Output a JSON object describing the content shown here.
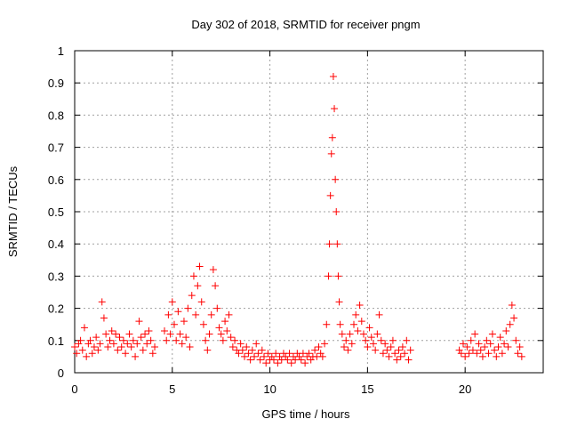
{
  "chart_data": {
    "type": "scatter",
    "title": "Day 302 of 2018, SRMTID for receiver pngm",
    "xlabel": "GPS time / hours",
    "ylabel": "SRMTID / TECUs",
    "xlim": [
      0,
      24
    ],
    "ylim": [
      0,
      1
    ],
    "grid": true,
    "marker": "+",
    "color": "#ff0000",
    "x_ticks": [
      0,
      5,
      10,
      15,
      20
    ],
    "x_tick_labels": [
      "0",
      "5",
      "10",
      "15",
      "20"
    ],
    "y_ticks": [
      0,
      0.1,
      0.2,
      0.3,
      0.4,
      0.5,
      0.6,
      0.7,
      0.8,
      0.9,
      1
    ],
    "y_tick_labels": [
      "0",
      "0.1",
      "0.2",
      "0.3",
      "0.4",
      "0.5",
      "0.6",
      "0.7",
      "0.8",
      "0.9",
      "1"
    ],
    "series": [
      {
        "name": "SRMTID",
        "points": [
          [
            0.0,
            0.08
          ],
          [
            0.1,
            0.06
          ],
          [
            0.2,
            0.09
          ],
          [
            0.3,
            0.1
          ],
          [
            0.4,
            0.07
          ],
          [
            0.5,
            0.14
          ],
          [
            0.6,
            0.05
          ],
          [
            0.7,
            0.09
          ],
          [
            0.8,
            0.1
          ],
          [
            0.9,
            0.06
          ],
          [
            1.0,
            0.08
          ],
          [
            1.1,
            0.11
          ],
          [
            1.2,
            0.07
          ],
          [
            1.3,
            0.09
          ],
          [
            1.4,
            0.22
          ],
          [
            1.5,
            0.17
          ],
          [
            1.6,
            0.12
          ],
          [
            1.7,
            0.08
          ],
          [
            1.8,
            0.1
          ],
          [
            1.9,
            0.13
          ],
          [
            2.0,
            0.09
          ],
          [
            2.1,
            0.12
          ],
          [
            2.2,
            0.07
          ],
          [
            2.3,
            0.11
          ],
          [
            2.4,
            0.08
          ],
          [
            2.5,
            0.1
          ],
          [
            2.6,
            0.06
          ],
          [
            2.7,
            0.09
          ],
          [
            2.8,
            0.12
          ],
          [
            2.9,
            0.08
          ],
          [
            3.0,
            0.1
          ],
          [
            3.1,
            0.05
          ],
          [
            3.2,
            0.09
          ],
          [
            3.3,
            0.16
          ],
          [
            3.4,
            0.11
          ],
          [
            3.5,
            0.07
          ],
          [
            3.6,
            0.12
          ],
          [
            3.7,
            0.09
          ],
          [
            3.8,
            0.13
          ],
          [
            3.9,
            0.1
          ],
          [
            4.0,
            0.06
          ],
          [
            4.1,
            0.08
          ],
          [
            4.6,
            0.13
          ],
          [
            4.7,
            0.1
          ],
          [
            4.8,
            0.18
          ],
          [
            4.9,
            0.12
          ],
          [
            5.0,
            0.22
          ],
          [
            5.1,
            0.15
          ],
          [
            5.2,
            0.1
          ],
          [
            5.3,
            0.19
          ],
          [
            5.4,
            0.12
          ],
          [
            5.5,
            0.09
          ],
          [
            5.6,
            0.16
          ],
          [
            5.7,
            0.11
          ],
          [
            5.8,
            0.2
          ],
          [
            5.9,
            0.08
          ],
          [
            6.0,
            0.24
          ],
          [
            6.1,
            0.3
          ],
          [
            6.2,
            0.18
          ],
          [
            6.3,
            0.27
          ],
          [
            6.4,
            0.33
          ],
          [
            6.5,
            0.22
          ],
          [
            6.6,
            0.15
          ],
          [
            6.7,
            0.1
          ],
          [
            6.8,
            0.07
          ],
          [
            6.9,
            0.12
          ],
          [
            7.0,
            0.18
          ],
          [
            7.1,
            0.32
          ],
          [
            7.2,
            0.27
          ],
          [
            7.3,
            0.2
          ],
          [
            7.4,
            0.14
          ],
          [
            7.5,
            0.12
          ],
          [
            7.6,
            0.1
          ],
          [
            7.7,
            0.16
          ],
          [
            7.8,
            0.13
          ],
          [
            7.9,
            0.18
          ],
          [
            8.0,
            0.11
          ],
          [
            8.1,
            0.08
          ],
          [
            8.2,
            0.1
          ],
          [
            8.3,
            0.07
          ],
          [
            8.4,
            0.06
          ],
          [
            8.5,
            0.09
          ],
          [
            8.6,
            0.07
          ],
          [
            8.7,
            0.05
          ],
          [
            8.8,
            0.08
          ],
          [
            8.9,
            0.06
          ],
          [
            9.0,
            0.04
          ],
          [
            9.1,
            0.07
          ],
          [
            9.2,
            0.05
          ],
          [
            9.3,
            0.09
          ],
          [
            9.4,
            0.06
          ],
          [
            9.5,
            0.04
          ],
          [
            9.6,
            0.07
          ],
          [
            9.7,
            0.05
          ],
          [
            9.8,
            0.03
          ],
          [
            9.9,
            0.06
          ],
          [
            10.0,
            0.04
          ],
          [
            10.1,
            0.05
          ],
          [
            10.2,
            0.04
          ],
          [
            10.3,
            0.06
          ],
          [
            10.4,
            0.03
          ],
          [
            10.5,
            0.05
          ],
          [
            10.6,
            0.04
          ],
          [
            10.7,
            0.06
          ],
          [
            10.8,
            0.05
          ],
          [
            10.9,
            0.04
          ],
          [
            11.0,
            0.06
          ],
          [
            11.1,
            0.03
          ],
          [
            11.2,
            0.05
          ],
          [
            11.3,
            0.04
          ],
          [
            11.4,
            0.06
          ],
          [
            11.5,
            0.05
          ],
          [
            11.6,
            0.04
          ],
          [
            11.7,
            0.06
          ],
          [
            11.8,
            0.03
          ],
          [
            11.9,
            0.05
          ],
          [
            12.0,
            0.06
          ],
          [
            12.1,
            0.04
          ],
          [
            12.2,
            0.05
          ],
          [
            12.3,
            0.07
          ],
          [
            12.4,
            0.05
          ],
          [
            12.5,
            0.08
          ],
          [
            12.6,
            0.06
          ],
          [
            12.7,
            0.05
          ],
          [
            12.8,
            0.09
          ],
          [
            12.9,
            0.15
          ],
          [
            13.0,
            0.3
          ],
          [
            13.05,
            0.4
          ],
          [
            13.1,
            0.55
          ],
          [
            13.15,
            0.68
          ],
          [
            13.2,
            0.73
          ],
          [
            13.25,
            0.92
          ],
          [
            13.3,
            0.82
          ],
          [
            13.35,
            0.6
          ],
          [
            13.4,
            0.5
          ],
          [
            13.45,
            0.4
          ],
          [
            13.5,
            0.3
          ],
          [
            13.55,
            0.22
          ],
          [
            13.6,
            0.15
          ],
          [
            13.7,
            0.12
          ],
          [
            13.8,
            0.08
          ],
          [
            13.9,
            0.1
          ],
          [
            14.0,
            0.07
          ],
          [
            14.1,
            0.12
          ],
          [
            14.2,
            0.09
          ],
          [
            14.3,
            0.15
          ],
          [
            14.4,
            0.18
          ],
          [
            14.5,
            0.13
          ],
          [
            14.6,
            0.21
          ],
          [
            14.7,
            0.16
          ],
          [
            14.8,
            0.12
          ],
          [
            14.9,
            0.1
          ],
          [
            15.0,
            0.08
          ],
          [
            15.1,
            0.14
          ],
          [
            15.2,
            0.11
          ],
          [
            15.3,
            0.09
          ],
          [
            15.4,
            0.07
          ],
          [
            15.5,
            0.12
          ],
          [
            15.6,
            0.18
          ],
          [
            15.7,
            0.1
          ],
          [
            15.8,
            0.06
          ],
          [
            15.9,
            0.09
          ],
          [
            16.0,
            0.07
          ],
          [
            16.1,
            0.05
          ],
          [
            16.2,
            0.08
          ],
          [
            16.3,
            0.1
          ],
          [
            16.4,
            0.06
          ],
          [
            16.5,
            0.04
          ],
          [
            16.6,
            0.07
          ],
          [
            16.7,
            0.05
          ],
          [
            16.8,
            0.08
          ],
          [
            16.9,
            0.06
          ],
          [
            17.0,
            0.1
          ],
          [
            17.1,
            0.04
          ],
          [
            17.2,
            0.07
          ],
          [
            19.7,
            0.07
          ],
          [
            19.8,
            0.06
          ],
          [
            19.9,
            0.09
          ],
          [
            20.0,
            0.05
          ],
          [
            20.1,
            0.08
          ],
          [
            20.2,
            0.06
          ],
          [
            20.3,
            0.1
          ],
          [
            20.4,
            0.07
          ],
          [
            20.5,
            0.12
          ],
          [
            20.6,
            0.06
          ],
          [
            20.7,
            0.09
          ],
          [
            20.8,
            0.07
          ],
          [
            20.9,
            0.05
          ],
          [
            21.0,
            0.08
          ],
          [
            21.1,
            0.1
          ],
          [
            21.2,
            0.06
          ],
          [
            21.3,
            0.09
          ],
          [
            21.4,
            0.12
          ],
          [
            21.5,
            0.07
          ],
          [
            21.6,
            0.05
          ],
          [
            21.7,
            0.08
          ],
          [
            21.8,
            0.11
          ],
          [
            21.9,
            0.06
          ],
          [
            22.0,
            0.09
          ],
          [
            22.1,
            0.13
          ],
          [
            22.2,
            0.08
          ],
          [
            22.3,
            0.15
          ],
          [
            22.4,
            0.21
          ],
          [
            22.5,
            0.17
          ],
          [
            22.6,
            0.1
          ],
          [
            22.7,
            0.06
          ],
          [
            22.8,
            0.08
          ],
          [
            22.9,
            0.05
          ]
        ]
      }
    ]
  }
}
